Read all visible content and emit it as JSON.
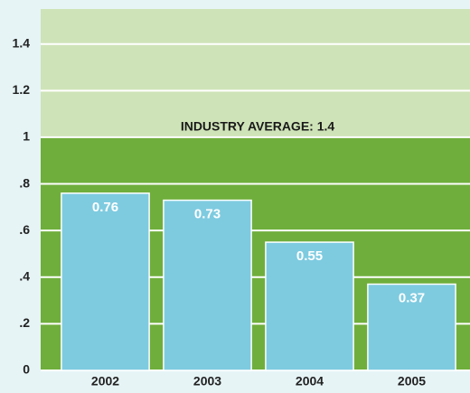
{
  "chart_data": {
    "type": "bar",
    "annotation": "INDUSTRY AVERAGE: 1.4",
    "categories": [
      "2002",
      "2003",
      "2004",
      "2005"
    ],
    "values": [
      0.76,
      0.73,
      0.55,
      0.37
    ],
    "color": "#7ecbe0",
    "ylim": [
      0,
      1.55
    ],
    "yticks": [
      0,
      {
        "value": 0.2,
        "label": ".2"
      },
      {
        "value": 0.4,
        "label": ".4"
      },
      {
        "value": 0.6,
        "label": ".6"
      },
      {
        "value": 0.8,
        "label": ".8"
      },
      1,
      {
        "value": 1.2,
        "label": "1.2"
      },
      {
        "value": 1.4,
        "label": "1.4"
      }
    ],
    "grid": true,
    "shaded_below": 1,
    "shade_color_below": "#6fae3c",
    "shade_color_above": "#cfe3b8"
  }
}
